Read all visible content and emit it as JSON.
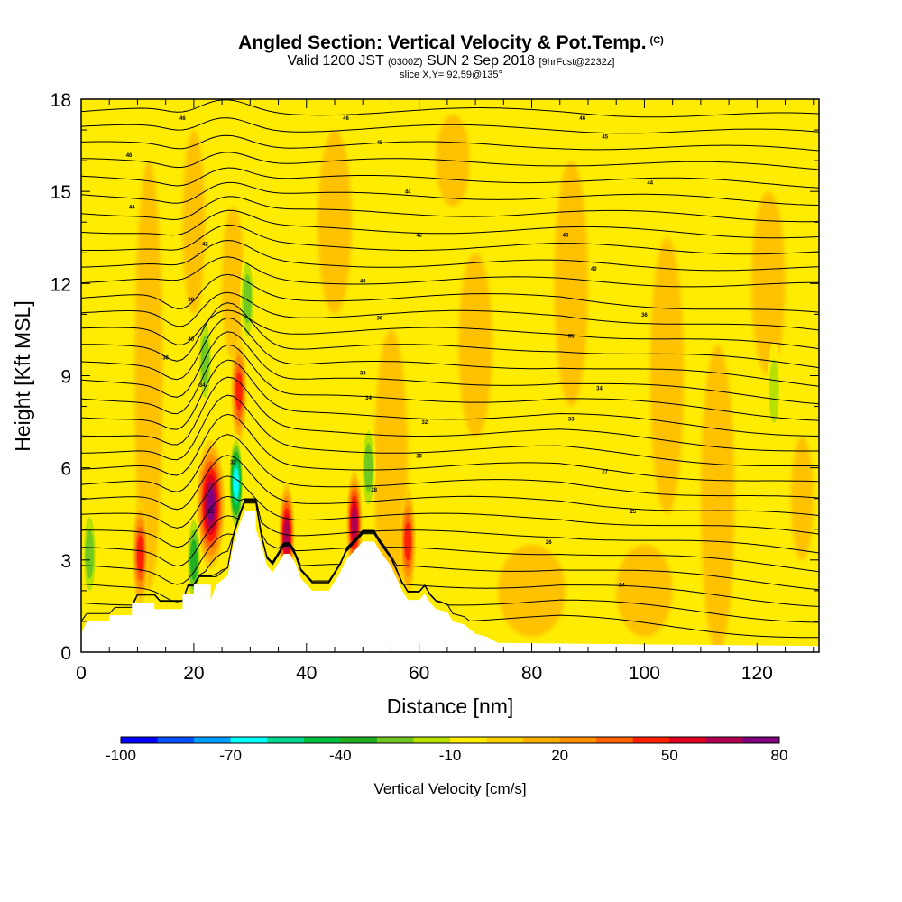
{
  "header": {
    "title": "Angled Section: Vertical Velocity & Pot.Temp.",
    "title_suffix": "(C)",
    "valid_prefix": "Valid 1200 JST",
    "valid_utc": "(0300Z)",
    "valid_date": "SUN 2 Sep 2018",
    "forecast_tag": "[9hrFcst@2232z]",
    "slice": "slice X,Y= 92,59@135°"
  },
  "colors": {
    "base_fill": "#ffec00",
    "terrain": "#ffffff",
    "contour": "#000000"
  },
  "chart_data": {
    "type": "heatmap",
    "xlabel": "Distance [nm]",
    "ylabel": "Height [Kft MSL]",
    "xlim": [
      0,
      131
    ],
    "ylim": [
      0,
      18
    ],
    "x_ticks": [
      "0",
      "20",
      "40",
      "60",
      "80",
      "100",
      "120"
    ],
    "x_tick_values": [
      0,
      20,
      40,
      60,
      80,
      100,
      120
    ],
    "y_ticks": [
      "0",
      "3",
      "6",
      "9",
      "12",
      "15",
      "18"
    ],
    "y_tick_values": [
      0,
      3,
      6,
      9,
      12,
      15,
      18
    ],
    "colorbar": {
      "label": "Vertical Velocity [cm/s]",
      "levels": [
        -100,
        -90,
        -80,
        -70,
        -60,
        -50,
        -40,
        -30,
        -20,
        -10,
        0,
        10,
        20,
        30,
        40,
        50,
        60,
        70,
        80
      ],
      "tick_labels": [
        "-100",
        "-70",
        "-40",
        "-10",
        "20",
        "50",
        "80"
      ],
      "colors": [
        "#0000ff",
        "#0050ff",
        "#00a0ff",
        "#00ffff",
        "#00d890",
        "#00c040",
        "#20b020",
        "#70c820",
        "#b8e000",
        "#ffec00",
        "#ffd000",
        "#ffb000",
        "#ff9000",
        "#ff6000",
        "#ff2000",
        "#e00020",
        "#b00050",
        "#800080"
      ]
    },
    "terrain": [
      [
        0,
        0.6
      ],
      [
        1,
        1
      ],
      [
        5,
        1
      ],
      [
        5,
        1.2
      ],
      [
        9,
        1.2
      ],
      [
        9,
        1.6
      ],
      [
        13,
        1.6
      ],
      [
        13,
        1.4
      ],
      [
        18,
        1.4
      ],
      [
        18,
        1.9
      ],
      [
        20,
        1.9
      ],
      [
        20,
        2.2
      ],
      [
        23,
        2.2
      ],
      [
        23,
        1.7
      ],
      [
        24,
        2.2
      ],
      [
        26,
        2.5
      ],
      [
        27,
        3.5
      ],
      [
        28,
        4.1
      ],
      [
        29,
        4.6
      ],
      [
        31,
        4.6
      ],
      [
        31,
        4.0
      ],
      [
        32,
        3.5
      ],
      [
        33,
        2.8
      ],
      [
        34,
        2.6
      ],
      [
        35,
        2.9
      ],
      [
        36,
        3.2
      ],
      [
        37,
        3.2
      ],
      [
        38,
        2.9
      ],
      [
        39,
        2.4
      ],
      [
        40,
        2.2
      ],
      [
        41,
        2.0
      ],
      [
        44,
        2.0
      ],
      [
        45,
        2.3
      ],
      [
        46,
        2.6
      ],
      [
        47,
        3.0
      ],
      [
        49,
        3.4
      ],
      [
        50,
        3.6
      ],
      [
        52,
        3.6
      ],
      [
        53,
        3.3
      ],
      [
        55,
        2.8
      ],
      [
        56,
        2.4
      ],
      [
        57,
        2.0
      ],
      [
        58,
        1.7
      ],
      [
        60,
        1.7
      ],
      [
        61,
        1.9
      ],
      [
        62,
        1.6
      ],
      [
        63,
        1.4
      ],
      [
        65,
        1.3
      ],
      [
        66,
        1.0
      ],
      [
        68,
        0.9
      ],
      [
        70,
        0.6
      ],
      [
        72,
        0.5
      ],
      [
        74,
        0.3
      ],
      [
        131,
        0.2
      ]
    ],
    "updrafts": [
      {
        "x": 23,
        "y": 4.8,
        "w": 80
      },
      {
        "x": 36.5,
        "y": 3.8,
        "w": 70
      },
      {
        "x": 48.5,
        "y": 4.2,
        "w": 70
      },
      {
        "x": 58,
        "y": 3.6,
        "w": 50
      },
      {
        "x": 10.5,
        "y": 3.2,
        "w": 50
      },
      {
        "x": 28,
        "y": 8.5,
        "w": 50
      }
    ],
    "downdrafts": [
      {
        "x": 27.5,
        "y": 5.5,
        "w": -70
      },
      {
        "x": 20,
        "y": 3.0,
        "w": -40
      },
      {
        "x": 1.5,
        "y": 3.2,
        "w": -30
      },
      {
        "x": 29.5,
        "y": 11.5,
        "w": -30
      },
      {
        "x": 22,
        "y": 9.5,
        "w": -30
      },
      {
        "x": 51,
        "y": 6.0,
        "w": -30
      },
      {
        "x": 123,
        "y": 8.5,
        "w": -20
      }
    ],
    "theta_labels": [
      {
        "x": 18,
        "y": 17.4,
        "label": "46"
      },
      {
        "x": 47,
        "y": 17.4,
        "label": "46"
      },
      {
        "x": 89,
        "y": 17.4,
        "label": "46"
      },
      {
        "x": 8.5,
        "y": 16.2,
        "label": "46"
      },
      {
        "x": 53,
        "y": 16.6,
        "label": "45"
      },
      {
        "x": 93,
        "y": 16.8,
        "label": "45"
      },
      {
        "x": 9,
        "y": 14.5,
        "label": "44"
      },
      {
        "x": 58,
        "y": 15.0,
        "label": "44"
      },
      {
        "x": 101,
        "y": 15.3,
        "label": "44"
      },
      {
        "x": 22,
        "y": 13.3,
        "label": "42"
      },
      {
        "x": 60,
        "y": 13.6,
        "label": "42"
      },
      {
        "x": 86,
        "y": 13.6,
        "label": "40"
      },
      {
        "x": 19.5,
        "y": 11.5,
        "label": "38"
      },
      {
        "x": 50,
        "y": 12.1,
        "label": "40"
      },
      {
        "x": 91,
        "y": 12.5,
        "label": "40"
      },
      {
        "x": 19.5,
        "y": 10.2,
        "label": "40"
      },
      {
        "x": 53,
        "y": 10.9,
        "label": "36"
      },
      {
        "x": 100,
        "y": 11.0,
        "label": "36"
      },
      {
        "x": 15,
        "y": 9.6,
        "label": "36"
      },
      {
        "x": 87,
        "y": 10.3,
        "label": "35"
      },
      {
        "x": 21.5,
        "y": 8.7,
        "label": "34"
      },
      {
        "x": 50,
        "y": 9.1,
        "label": "33"
      },
      {
        "x": 92,
        "y": 8.6,
        "label": "34"
      },
      {
        "x": 51,
        "y": 8.3,
        "label": "34"
      },
      {
        "x": 61,
        "y": 7.5,
        "label": "32"
      },
      {
        "x": 87,
        "y": 7.6,
        "label": "33"
      },
      {
        "x": 60,
        "y": 6.4,
        "label": "30"
      },
      {
        "x": 93,
        "y": 5.9,
        "label": "27"
      },
      {
        "x": 27,
        "y": 6.2,
        "label": "32"
      },
      {
        "x": 52,
        "y": 5.3,
        "label": "28"
      },
      {
        "x": 23,
        "y": 4.6,
        "label": "26"
      },
      {
        "x": 98,
        "y": 4.6,
        "label": "25"
      },
      {
        "x": 83,
        "y": 3.6,
        "label": "26"
      },
      {
        "x": 96,
        "y": 2.2,
        "label": "24"
      }
    ]
  }
}
